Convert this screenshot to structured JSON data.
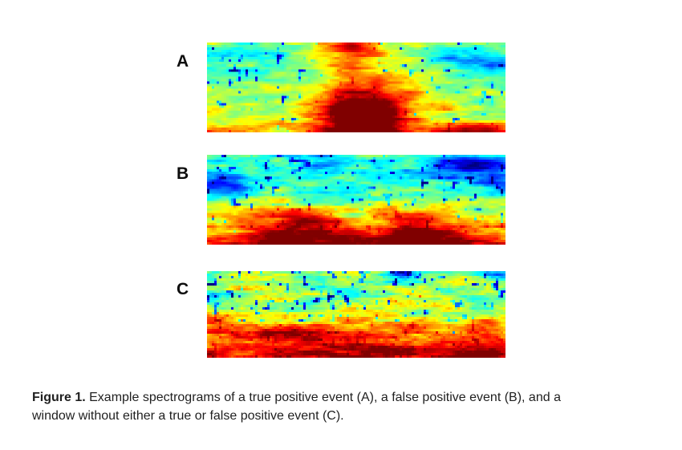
{
  "figure": {
    "caption": {
      "prefix": "Figure 1.",
      "line1": " Example spectrograms of a true positive event (A), a false positive event (B), and a",
      "line2": "window without either a true or false positive event (C)."
    },
    "panels": [
      {
        "label": "A",
        "meaning": "true positive event",
        "seed": 7,
        "gradient": [
          [
            0,
            0.47
          ],
          [
            0.3,
            0.46
          ],
          [
            0.55,
            0.52
          ],
          [
            0.75,
            0.57
          ],
          [
            0.9,
            0.6
          ],
          [
            1,
            0.65
          ]
        ],
        "octaves": [
          [
            0.07,
            0.45,
            0.1
          ],
          [
            0.17,
            0.8,
            0.055
          ],
          [
            0.45,
            1.0,
            0.035
          ]
        ],
        "speckle": {
          "scale": 0.55,
          "thresh": 0.82,
          "amp": 0.5
        },
        "blobs": [
          [
            0.53,
            1.02,
            0.09,
            0.4,
            0.52
          ],
          [
            0.53,
            0.7,
            0.15,
            0.32,
            0.2
          ],
          [
            0.5,
            0.02,
            0.06,
            0.12,
            0.24
          ],
          [
            0.51,
            0.06,
            0.11,
            0.16,
            0.12
          ],
          [
            0.95,
            0.24,
            0.08,
            0.07,
            -0.28
          ],
          [
            0.8,
            0.14,
            0.06,
            0.05,
            -0.15
          ],
          [
            0.9,
            1.0,
            0.1,
            0.07,
            0.28
          ],
          [
            0.08,
            1.0,
            0.1,
            0.06,
            0.12
          ],
          [
            0.1,
            0.3,
            0.1,
            0.1,
            -0.08
          ]
        ]
      },
      {
        "label": "B",
        "meaning": "false positive event",
        "seed": 21,
        "gradient": [
          [
            0,
            0.43
          ],
          [
            0.4,
            0.46
          ],
          [
            0.58,
            0.52
          ],
          [
            0.7,
            0.58
          ],
          [
            0.82,
            0.66
          ],
          [
            0.95,
            0.74
          ],
          [
            1,
            0.78
          ]
        ],
        "octaves": [
          [
            0.07,
            0.45,
            0.11
          ],
          [
            0.17,
            0.8,
            0.06
          ],
          [
            0.45,
            1.0,
            0.04
          ]
        ],
        "speckle": {
          "scale": 0.55,
          "thresh": 0.8,
          "amp": 0.55
        },
        "blobs": [
          [
            0.3,
            0.8,
            0.12,
            0.14,
            0.34
          ],
          [
            0.7,
            0.78,
            0.12,
            0.12,
            0.3
          ],
          [
            0.27,
            1.03,
            0.2,
            0.09,
            0.26
          ],
          [
            0.8,
            1.03,
            0.18,
            0.09,
            0.26
          ],
          [
            0.2,
            0.62,
            0.15,
            0.08,
            0.08
          ],
          [
            0.75,
            0.6,
            0.15,
            0.08,
            0.08
          ],
          [
            0.5,
            0.68,
            0.06,
            0.14,
            -0.1
          ],
          [
            0.05,
            0.3,
            0.08,
            0.1,
            -0.28
          ],
          [
            0.88,
            0.13,
            0.11,
            0.1,
            -0.3
          ],
          [
            0.97,
            0.33,
            0.05,
            0.1,
            -0.2
          ],
          [
            0.42,
            0.08,
            0.06,
            0.06,
            -0.18
          ],
          [
            0.62,
            0.3,
            0.07,
            0.06,
            -0.1
          ]
        ]
      },
      {
        "label": "C",
        "meaning": "window without a true or false positive event",
        "seed": 33,
        "gradient": [
          [
            0,
            0.5
          ],
          [
            0.3,
            0.55
          ],
          [
            0.5,
            0.6
          ],
          [
            0.6,
            0.67
          ],
          [
            0.72,
            0.74
          ],
          [
            0.85,
            0.8
          ],
          [
            1,
            0.86
          ]
        ],
        "octaves": [
          [
            0.07,
            0.45,
            0.12
          ],
          [
            0.17,
            0.8,
            0.06
          ],
          [
            0.5,
            1.0,
            0.05
          ]
        ],
        "speckle": {
          "scale": 0.6,
          "thresh": 0.76,
          "amp": 0.6
        },
        "blobs": [
          [
            0.64,
            0.03,
            0.04,
            0.05,
            -0.3
          ],
          [
            0.97,
            0.03,
            0.04,
            0.06,
            -0.25
          ],
          [
            0.9,
            0.4,
            0.08,
            0.08,
            -0.12
          ],
          [
            0.55,
            0.3,
            0.06,
            0.05,
            -0.1
          ],
          [
            0.02,
            0.3,
            0.04,
            0.05,
            -0.2
          ],
          [
            0.25,
            0.72,
            0.22,
            0.05,
            0.14
          ],
          [
            0.5,
            1.0,
            0.25,
            0.1,
            0.1
          ],
          [
            0.85,
            0.95,
            0.12,
            0.08,
            0.1
          ],
          [
            0.03,
            0.62,
            0.05,
            0.05,
            0.12
          ]
        ]
      }
    ]
  },
  "chart_data": [
    {
      "type": "heatmap",
      "title": "A",
      "subtitle": "true positive event",
      "colormap": "jet",
      "axes_labeled": false,
      "content": "Broadband high-energy burst centered at about 52% of the time axis; red core widening toward the bottom with dark red at the base; orange spot at top of burst; cyan-green background; dark blue streak in the upper right; orange band along the bottom edge."
    },
    {
      "type": "heatmap",
      "title": "B",
      "subtitle": "false positive event",
      "colormap": "jet",
      "axes_labeled": false,
      "content": "Persistent low-frequency red-orange energy band along the bottom with two stronger lobes near 30% and 70% of the time axis separated by a greener notch; cyan upper region with dark blue patches at upper left, top center, and upper right."
    },
    {
      "type": "heatmap",
      "title": "C",
      "subtitle": "window without a true or false positive event",
      "colormap": "jet",
      "axes_labeled": false,
      "content": "Continuous red-orange low-frequency band along the bottom, mottled yellow-green middle band, cyan-green upper region with scattered dark speckles; no distinct localized event."
    }
  ]
}
